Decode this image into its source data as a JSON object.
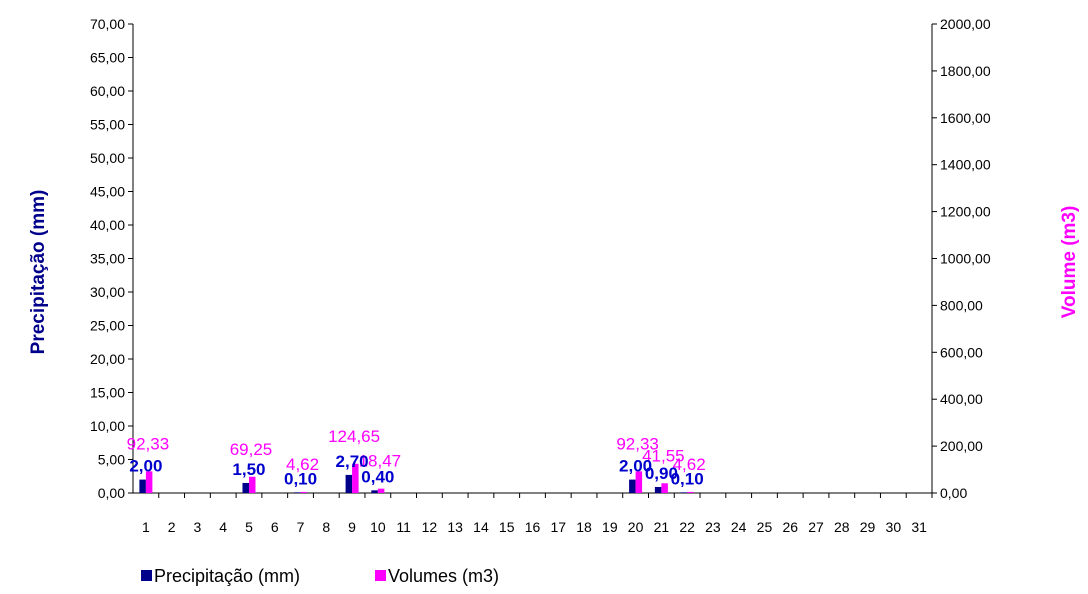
{
  "chart_data": {
    "type": "bar",
    "categories": [
      "1",
      "2",
      "3",
      "4",
      "5",
      "6",
      "7",
      "8",
      "9",
      "10",
      "11",
      "12",
      "13",
      "14",
      "15",
      "16",
      "17",
      "18",
      "19",
      "20",
      "21",
      "22",
      "23",
      "24",
      "25",
      "26",
      "27",
      "28",
      "29",
      "30",
      "31"
    ],
    "series": [
      {
        "name": "Precipitação (mm)",
        "axis": "left",
        "color": "#00008B",
        "label_color": "#0000CC",
        "values": [
          2.0,
          0,
          0,
          0,
          1.5,
          0,
          0.1,
          0,
          2.7,
          0.4,
          0,
          0,
          0,
          0,
          0,
          0,
          0,
          0,
          0,
          2.0,
          0.9,
          0.1,
          0,
          0,
          0,
          0,
          0,
          0,
          0,
          0,
          0
        ],
        "data_labels": {
          "1": "2,00",
          "5": "1,50",
          "7": "0,10",
          "9": "2,70",
          "10": "0,40",
          "20": "2,00",
          "21": "0,90",
          "22": "0,10"
        }
      },
      {
        "name": "Volumes (m3)",
        "axis": "right",
        "color": "#FF00FF",
        "label_color": "#FF00FF",
        "values": [
          92.33,
          0,
          0,
          0,
          69.25,
          0,
          4.62,
          0,
          124.65,
          18.47,
          0,
          0,
          0,
          0,
          0,
          0,
          0,
          0,
          0,
          92.33,
          41.55,
          4.62,
          0,
          0,
          0,
          0,
          0,
          0,
          0,
          0,
          0
        ],
        "data_labels": {
          "1": "92,33",
          "5": "69,25",
          "7": "4,62",
          "9": "124,65",
          "10": "18,47",
          "20": "92,33",
          "21": "41,55",
          "22": "4,62"
        }
      }
    ],
    "y_left": {
      "label": "Precipitação (mm)",
      "label_color": "#00008B",
      "ylim": [
        0,
        70
      ],
      "ticks": [
        "0,00",
        "5,00",
        "10,00",
        "15,00",
        "20,00",
        "25,00",
        "30,00",
        "35,00",
        "40,00",
        "45,00",
        "50,00",
        "55,00",
        "60,00",
        "65,00",
        "70,00"
      ]
    },
    "y_right": {
      "label": "Volume (m3)",
      "label_color": "#FF00FF",
      "ylim": [
        0,
        2000
      ],
      "ticks": [
        "0,00",
        "200,00",
        "400,00",
        "600,00",
        "800,00",
        "1000,00",
        "1200,00",
        "1400,00",
        "1600,00",
        "1800,00",
        "2000,00"
      ]
    },
    "legend": {
      "position": "bottom-left",
      "items": [
        "Precipitação (mm)",
        "Volumes (m3)"
      ]
    },
    "grid": false
  }
}
